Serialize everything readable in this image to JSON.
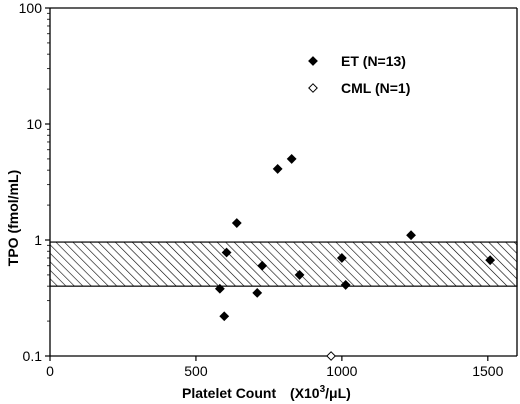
{
  "chart_data": {
    "type": "scatter",
    "x_label_main": "Platelet Count",
    "x_label_unit": "X10",
    "x_label_sup": "3",
    "x_label_unit_end": "/μL)",
    "x_label_paren_open": "(",
    "y_label": "TPO (fmol/mL)",
    "x_range": [
      0,
      1600
    ],
    "y_range": [
      0.1,
      100
    ],
    "y_scale": "log",
    "x_ticks": [
      {
        "value": 0,
        "label": "0"
      },
      {
        "value": 500,
        "label": "500"
      },
      {
        "value": 1000,
        "label": "1000"
      },
      {
        "value": 1500,
        "label": "1500"
      }
    ],
    "y_ticks": [
      {
        "value": 0.1,
        "label": "0.1"
      },
      {
        "value": 1,
        "label": "1"
      },
      {
        "value": 10,
        "label": "10"
      },
      {
        "value": 100,
        "label": "100"
      }
    ],
    "grid": false,
    "legend_position": "top-right",
    "reference_band": {
      "y_min": 0.4,
      "y_max": 0.96,
      "fill": "hatched"
    },
    "series": [
      {
        "name": "ET (N=13)",
        "marker": "filled-diamond",
        "color": "#000000",
        "points": [
          {
            "x": 582,
            "y": 0.38
          },
          {
            "x": 597,
            "y": 0.22
          },
          {
            "x": 605,
            "y": 0.78
          },
          {
            "x": 640,
            "y": 1.4
          },
          {
            "x": 710,
            "y": 0.35
          },
          {
            "x": 727,
            "y": 0.6
          },
          {
            "x": 780,
            "y": 4.1
          },
          {
            "x": 828,
            "y": 5.0
          },
          {
            "x": 855,
            "y": 0.5
          },
          {
            "x": 1000,
            "y": 0.7
          },
          {
            "x": 1013,
            "y": 0.41
          },
          {
            "x": 1237,
            "y": 1.1
          },
          {
            "x": 1508,
            "y": 0.67
          }
        ]
      },
      {
        "name": "CML (N=1)",
        "marker": "open-diamond",
        "color": "#000000",
        "points": [
          {
            "x": 963,
            "y": 0.1
          }
        ]
      }
    ]
  }
}
